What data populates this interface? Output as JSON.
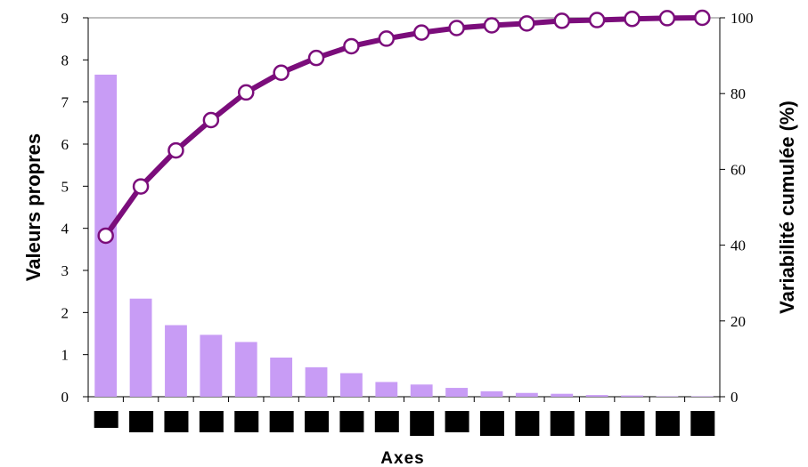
{
  "chart_data": {
    "type": "bar",
    "xlabel": "Axes",
    "ylabel_left": "Valeurs propres",
    "ylabel_right": "Variabilité cumulée (%)",
    "ylim_left": [
      0,
      9
    ],
    "ylim_right": [
      0,
      100
    ],
    "yticks_left": [
      "0",
      "1",
      "2",
      "3",
      "4",
      "5",
      "6",
      "7",
      "8",
      "9"
    ],
    "yticks_right": [
      "0",
      "20",
      "40",
      "60",
      "80",
      "100"
    ],
    "grid": false,
    "series": [
      {
        "type": "bar",
        "color": "#c89cf5",
        "axis": "left",
        "values": [
          7.65,
          2.33,
          1.7,
          1.47,
          1.3,
          0.93,
          0.7,
          0.56,
          0.35,
          0.29,
          0.21,
          0.13,
          0.09,
          0.07,
          0.04,
          0.03,
          0.01,
          0.01
        ]
      },
      {
        "type": "line",
        "color": "#7b0d7b",
        "axis": "right",
        "values": [
          42.5,
          55.5,
          65.0,
          73.0,
          80.3,
          85.5,
          89.4,
          92.5,
          94.5,
          96.1,
          97.3,
          98.0,
          98.5,
          99.2,
          99.4,
          99.7,
          99.9,
          100.0
        ]
      }
    ],
    "x_tick_labels_redacted": true
  }
}
